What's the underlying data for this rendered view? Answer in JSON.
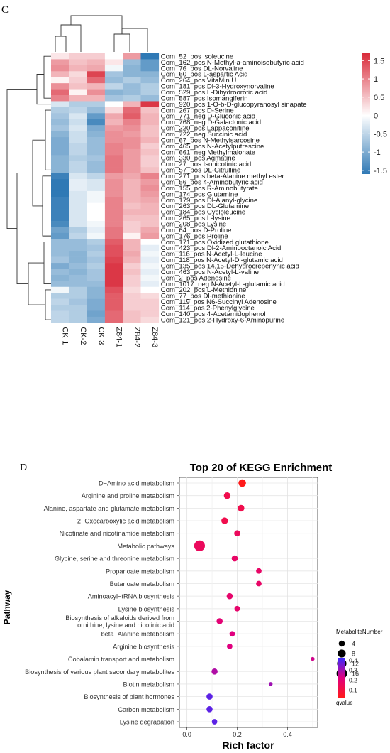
{
  "panel_labels": {
    "c": "C",
    "d": "D"
  },
  "chart_data": [
    {
      "type": "heatmap",
      "columns": [
        "CK-1",
        "CK-2",
        "CK-3",
        "Z84-1",
        "Z84-2",
        "Z84-3"
      ],
      "rows": [
        "Com_52_pos isoleucine",
        "Com_162_pos N-Methyl-a-aminoisobutyric acid",
        "Com_76_pos DL-Norvaline",
        "Com_60_pos L-aspartic Acid",
        "Com_264_pos VitaMin U",
        "Com_181_pos Dl-3-Hydroxynorvaline",
        "Com_529_pos L-Dihydroorotic acid",
        "Com_587_pos Isomangiferin",
        "Com_920_pos 1-O-b-D-glucopyranosyl sinapate",
        "Com_267_pos D-Serine",
        "Com_771_neg D-Gluconic acid",
        "Com_768_neg D-Galactonic acid",
        "Com_220_pos Lappaconitine",
        "Com_722_neg Succinic acid",
        "Com_67_pos N-Methylsarcosine",
        "Com_465_pos N-Acetylputrescine",
        "Com_661_neg Methylmalonate",
        "Com_330_pos Agmatine",
        "Com_27_pos Isonicotinic acid",
        "Com_57_pos DL-Citrulline",
        "Com_271_pos beta-Alanine methyl ester",
        "Com_56_pos 4-Aminobutyric acid",
        "Com_155_pos R-Aminobutyrate",
        "Com_174_pos Glutamine",
        "Com_179_pos Dl-Alanyl-glycine",
        "Com_263_pos DL-Glutamine",
        "Com_184_pos Cycloleucine",
        "Com_265_pos L-lysine",
        "Com_208_pos Lysine",
        "Com_64_pos D-Proline",
        "Com_176_pos Proline",
        "Com_171_pos Oxidized glutathione",
        "Com_423_pos Dl-2-Aminooctanoic Acid",
        "Com_116_pos N-Acetyl-L-leucine",
        "Com_118_pos N-Acetyl-Dl-glutamic acid",
        "Com_135_pos 14,15-Dehydrocrepenynic acid",
        "Com_463_pos N-Acetyl-L-valine",
        "Com_2_pos Adenosine",
        "Com_1017_neg N-Acetyl-L-glutamic acid",
        "Com_202_pos L-Methionine",
        "Com_77_pos Dl-methionine",
        "Com_119_pos N6-Succinyl Adenosine",
        "Com_114_pos 2-Phenylglycine",
        "Com_140_pos 4-Acetamidophenol",
        "Com_121_pos 2-Hydroxy-6-Aminopurine"
      ],
      "values": [
        [
          0.2,
          0.4,
          0.4,
          0.0,
          0.8,
          -1.6
        ],
        [
          0.8,
          0.5,
          0.6,
          0.2,
          -0.8,
          -1.2
        ],
        [
          0.9,
          0.6,
          0.7,
          -0.1,
          -0.9,
          -1.2
        ],
        [
          0.6,
          0.3,
          1.5,
          -0.7,
          -0.9,
          -0.9
        ],
        [
          0.1,
          0.4,
          1.2,
          -0.8,
          -0.6,
          -0.8
        ],
        [
          0.9,
          0.5,
          0.6,
          -0.5,
          -0.8,
          -0.6
        ],
        [
          1.2,
          0.1,
          0.9,
          -0.9,
          -0.8,
          -0.6
        ],
        [
          1.0,
          0.6,
          0.6,
          -0.7,
          -0.6,
          -0.8
        ],
        [
          -0.3,
          -0.6,
          -0.6,
          0.0,
          0.6,
          1.6
        ],
        [
          -0.6,
          -0.5,
          -0.8,
          0.3,
          1.2,
          0.5
        ],
        [
          -0.7,
          -0.3,
          -1.2,
          0.7,
          1.3,
          0.6
        ],
        [
          -0.8,
          -0.4,
          -1.4,
          0.6,
          1.0,
          0.6
        ],
        [
          -0.7,
          -0.3,
          -1.0,
          0.8,
          0.9,
          0.5
        ],
        [
          -0.9,
          -0.4,
          -0.9,
          0.9,
          0.8,
          0.5
        ],
        [
          -1.0,
          -0.4,
          -0.8,
          0.9,
          0.9,
          0.6
        ],
        [
          -1.0,
          -0.5,
          -0.8,
          1.0,
          0.9,
          0.4
        ],
        [
          -1.0,
          -0.5,
          -0.8,
          1.0,
          0.8,
          0.5
        ],
        [
          -0.9,
          -0.6,
          -0.7,
          1.1,
          0.8,
          0.4
        ],
        [
          -0.9,
          -0.5,
          -0.8,
          1.1,
          0.8,
          0.4
        ],
        [
          -0.9,
          -0.5,
          -0.8,
          1.1,
          0.8,
          0.5
        ],
        [
          -1.5,
          -0.3,
          -0.5,
          0.8,
          0.7,
          1.0
        ],
        [
          -1.6,
          -0.2,
          -0.3,
          0.9,
          0.6,
          0.8
        ],
        [
          -1.6,
          -0.2,
          -0.3,
          0.9,
          0.6,
          0.9
        ],
        [
          -1.6,
          -0.3,
          -0.1,
          0.9,
          0.6,
          0.8
        ],
        [
          -1.5,
          -0.3,
          -0.1,
          1.0,
          0.6,
          0.7
        ],
        [
          -1.5,
          -0.3,
          0.0,
          1.0,
          0.5,
          0.6
        ],
        [
          -1.5,
          -0.3,
          0.0,
          1.0,
          0.6,
          0.6
        ],
        [
          -1.5,
          -0.3,
          0.0,
          1.0,
          0.5,
          0.5
        ],
        [
          -1.4,
          -0.3,
          -0.1,
          1.0,
          0.4,
          0.5
        ],
        [
          -1.1,
          -0.6,
          -0.2,
          1.1,
          0.4,
          0.7
        ],
        [
          -1.2,
          -0.5,
          -0.1,
          1.1,
          0.1,
          0.8
        ],
        [
          -0.8,
          -0.8,
          -0.6,
          1.3,
          0.6,
          0.0
        ],
        [
          -0.8,
          -0.8,
          -0.7,
          1.4,
          0.6,
          -0.2
        ],
        [
          -0.8,
          -0.9,
          -0.6,
          1.4,
          0.7,
          -0.1
        ],
        [
          -0.7,
          -0.9,
          -0.7,
          1.5,
          0.6,
          -0.2
        ],
        [
          -1.0,
          -0.8,
          -0.6,
          1.6,
          0.4,
          -0.1
        ],
        [
          -0.8,
          -0.9,
          -0.7,
          1.6,
          0.5,
          -0.2
        ],
        [
          -0.9,
          -0.8,
          -0.7,
          1.6,
          0.4,
          -0.1
        ],
        [
          -0.8,
          -0.8,
          -0.8,
          1.6,
          0.4,
          -0.2
        ],
        [
          -0.1,
          -0.6,
          -0.9,
          1.4,
          0.3,
          0.0
        ],
        [
          -0.6,
          -0.6,
          -0.9,
          1.3,
          0.4,
          0.3
        ],
        [
          -0.5,
          -0.7,
          -1.0,
          1.3,
          0.4,
          0.4
        ],
        [
          -0.6,
          -0.6,
          -1.0,
          1.3,
          0.4,
          0.4
        ],
        [
          -0.5,
          -0.6,
          -1.1,
          1.2,
          0.5,
          0.4
        ],
        [
          -0.5,
          -0.6,
          -1.0,
          1.2,
          0.5,
          0.3
        ]
      ],
      "colorbar": {
        "range": [
          -1.6,
          1.7
        ],
        "ticks": [
          1.5,
          1,
          0.5,
          0,
          -0.5,
          -1,
          -1.5
        ],
        "colors": {
          "low": "#2f79b5",
          "mid": "#ffffff",
          "high": "#d92b3a"
        }
      }
    },
    {
      "type": "scatter",
      "title": "Top 20 of KEGG Enrichment",
      "xlabel": "Rich factor",
      "ylabel": "Pathway",
      "xlim": [
        -0.03,
        0.52
      ],
      "xticks": [
        0.0,
        0.2,
        0.4
      ],
      "grid": true,
      "points": [
        {
          "pathway": "D−Amino acid metabolism",
          "rich_factor": 0.22,
          "metabolite_number": 7,
          "qvalue": 0.02
        },
        {
          "pathway": "Arginine and proline metabolism",
          "rich_factor": 0.16,
          "metabolite_number": 5,
          "qvalue": 0.12
        },
        {
          "pathway": "Alanine, aspartate and glutamate metabolism",
          "rich_factor": 0.215,
          "metabolite_number": 5,
          "qvalue": 0.12
        },
        {
          "pathway": "2−Oxocarboxylic acid metabolism",
          "rich_factor": 0.15,
          "metabolite_number": 5,
          "qvalue": 0.12
        },
        {
          "pathway": "Nicotinate and nicotinamide metabolism",
          "rich_factor": 0.2,
          "metabolite_number": 4,
          "qvalue": 0.15
        },
        {
          "pathway": "Metabolic pathways",
          "rich_factor": 0.05,
          "metabolite_number": 17,
          "qvalue": 0.15
        },
        {
          "pathway": "Glycine, serine and threonine metabolism",
          "rich_factor": 0.19,
          "metabolite_number": 4,
          "qvalue": 0.17
        },
        {
          "pathway": "Propanoate metabolism",
          "rich_factor": 0.286,
          "metabolite_number": 3,
          "qvalue": 0.17
        },
        {
          "pathway": "Butanoate metabolism",
          "rich_factor": 0.286,
          "metabolite_number": 3,
          "qvalue": 0.17
        },
        {
          "pathway": "Aminoacyl−tRNA biosynthesis",
          "rich_factor": 0.17,
          "metabolite_number": 4,
          "qvalue": 0.18
        },
        {
          "pathway": "Lysine biosynthesis",
          "rich_factor": 0.2,
          "metabolite_number": 3,
          "qvalue": 0.18
        },
        {
          "pathway": "Biosynthesis of alkaloids derived from\nornithine, lysine and nicotinic acid",
          "rich_factor": 0.13,
          "metabolite_number": 4,
          "qvalue": 0.2
        },
        {
          "pathway": "beta−Alanine metabolism",
          "rich_factor": 0.18,
          "metabolite_number": 3,
          "qvalue": 0.22
        },
        {
          "pathway": "Arginine biosynthesis",
          "rich_factor": 0.17,
          "metabolite_number": 3,
          "qvalue": 0.22
        },
        {
          "pathway": "Cobalamin transport and metabolism",
          "rich_factor": 0.5,
          "metabolite_number": 1,
          "qvalue": 0.24
        },
        {
          "pathway": "Biosynthesis of various plant secondary metabolites",
          "rich_factor": 0.11,
          "metabolite_number": 4,
          "qvalue": 0.28
        },
        {
          "pathway": "Biotin metabolism",
          "rich_factor": 0.333,
          "metabolite_number": 1,
          "qvalue": 0.3
        },
        {
          "pathway": "Biosynthesis of plant hormones",
          "rich_factor": 0.09,
          "metabolite_number": 4,
          "qvalue": 0.38
        },
        {
          "pathway": "Carbon metabolism",
          "rich_factor": 0.09,
          "metabolite_number": 4,
          "qvalue": 0.38
        },
        {
          "pathway": "Lysine degradation",
          "rich_factor": 0.11,
          "metabolite_number": 3,
          "qvalue": 0.38
        }
      ],
      "size_legend": {
        "title": "MetaboliteNumber",
        "values": [
          4,
          8,
          12,
          16
        ]
      },
      "color_legend": {
        "title": "qvalue",
        "ticks": [
          0.4,
          0.3,
          0.2,
          0.1
        ],
        "range": [
          0.02,
          0.42
        ],
        "colors": {
          "low": "#ff1a1a",
          "mid": "#e0007f",
          "high": "#3b2bff"
        }
      },
      "legend_position": "right"
    }
  ]
}
